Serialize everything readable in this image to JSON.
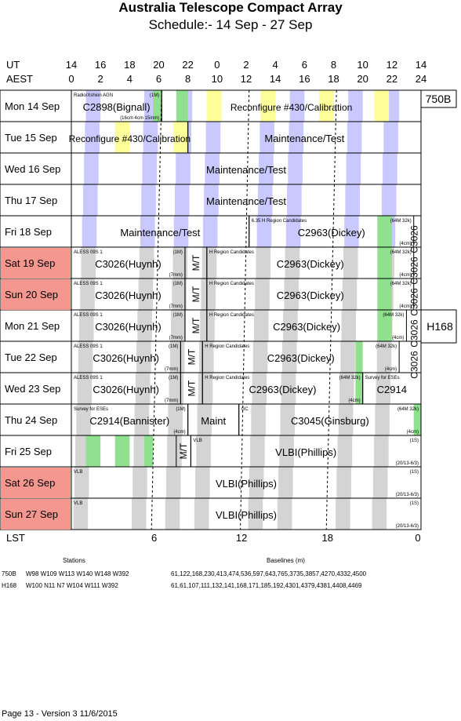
{
  "header": {
    "title": "Australia Telescope Compact Array",
    "subtitle": "Schedule:- 14 Sep - 27 Sep"
  },
  "axis": {
    "ut_label": "UT",
    "aest_label": "AEST",
    "ut_ticks": [
      "14",
      "16",
      "18",
      "20",
      "22",
      "0",
      "2",
      "4",
      "6",
      "8",
      "10",
      "12",
      "14"
    ],
    "aest_ticks": [
      "0",
      "2",
      "4",
      "6",
      "8",
      "10",
      "12",
      "14",
      "16",
      "18",
      "20",
      "22",
      "24"
    ],
    "lst_label": "LST",
    "lst_ticks": [
      "6",
      "12",
      "18",
      "0"
    ]
  },
  "days": [
    {
      "label": "Mon  14 Sep",
      "weekend": false
    },
    {
      "label": "Tue   15 Sep",
      "weekend": false
    },
    {
      "label": "Wed  16 Sep",
      "weekend": false
    },
    {
      "label": "Thu   17 Sep",
      "weekend": false
    },
    {
      "label": "Fri    18 Sep",
      "weekend": false
    },
    {
      "label": "Sat   19 Sep",
      "weekend": true
    },
    {
      "label": "Sun  20 Sep",
      "weekend": true
    },
    {
      "label": "Mon  21 Sep",
      "weekend": false
    },
    {
      "label": "Tue   22 Sep",
      "weekend": false
    },
    {
      "label": "Wed  23 Sep",
      "weekend": false
    },
    {
      "label": "Thu   24 Sep",
      "weekend": false
    },
    {
      "label": "Fri    25 Sep",
      "weekend": false
    },
    {
      "label": "Sat   26 Sep",
      "weekend": true
    },
    {
      "label": "Sun  27 Sep",
      "weekend": true
    }
  ],
  "configs": [
    {
      "label": "750B"
    },
    {
      "label": "H168"
    }
  ],
  "chart_data": {
    "type": "table",
    "x_axis": "AEST hours",
    "xlim": [
      0,
      24
    ],
    "blocks": [
      {
        "day": 0,
        "start": 0,
        "end": 6.2,
        "text": "C2898(Bignall)",
        "sub_left": "Radio/Xshion AGN",
        "sub_right": "(1M)",
        "note": "(16cm 4cm 15mm)"
      },
      {
        "day": 0,
        "start": 6.2,
        "end": 24,
        "text": "Reconfigure #430/Calibration"
      },
      {
        "day": 1,
        "start": 0,
        "end": 8,
        "text": "Reconfigure #430/Calibration"
      },
      {
        "day": 1,
        "start": 8,
        "end": 24,
        "text": "Maintenance/Test"
      },
      {
        "day": 2,
        "start": 0,
        "end": 24,
        "text": "Maintenance/Test"
      },
      {
        "day": 3,
        "start": 0,
        "end": 24,
        "text": "Maintenance/Test"
      },
      {
        "day": 4,
        "start": 0,
        "end": 12.2,
        "text": "Maintenance/Test"
      },
      {
        "day": 4,
        "start": 12.2,
        "end": 23.5,
        "text": "C2963(Dickey)",
        "sub_left": "6.35 H   Region Candidates",
        "sub_right": "(64M 32k)",
        "note": "(4cm)"
      },
      {
        "day": 5,
        "start": 0,
        "end": 7.8,
        "text": "C3026(Huynh)",
        "sub_left": "ALESS 09S 1",
        "sub_right": "(1M)",
        "note": "(7mm)"
      },
      {
        "day": 5,
        "start": 7.8,
        "end": 9.3,
        "text": "M/T",
        "vertical": true
      },
      {
        "day": 5,
        "start": 9.3,
        "end": 23.5,
        "text": "C2963(Dickey)",
        "sub_left": "H   Region Candidates",
        "sub_right": "(64M 32k)",
        "note": "(4cm)"
      },
      {
        "day": 6,
        "start": 0,
        "end": 7.8,
        "text": "C3026(Huynh)",
        "sub_left": "ALESS 09S 1",
        "sub_right": "(1M)",
        "note": "(7mm)"
      },
      {
        "day": 6,
        "start": 7.8,
        "end": 9.3,
        "text": "M/T",
        "vertical": true
      },
      {
        "day": 6,
        "start": 9.3,
        "end": 23.5,
        "text": "C2963(Dickey)",
        "sub_left": "H   Region Candidates",
        "sub_right": "(64M 32k)",
        "note": "(4cm)"
      },
      {
        "day": 7,
        "start": 0,
        "end": 7.8,
        "text": "C3026(Huynh)",
        "sub_left": "ALESS 09S 1",
        "sub_right": "(1M)",
        "note": "(7mm)"
      },
      {
        "day": 7,
        "start": 7.8,
        "end": 9.3,
        "text": "M/T",
        "vertical": true
      },
      {
        "day": 7,
        "start": 9.3,
        "end": 23.0,
        "text": "C2963(Dickey)",
        "sub_left": "H   Region Candidates",
        "sub_right": "(64M 32k)",
        "note": "(4cm)"
      },
      {
        "day": 8,
        "start": 0,
        "end": 7.5,
        "text": "C3026(Huynh)",
        "sub_left": "ALESS 09S 1",
        "sub_right": "(1M)",
        "note": "(7mm)"
      },
      {
        "day": 8,
        "start": 7.5,
        "end": 9.0,
        "text": "M/T",
        "vertical": true
      },
      {
        "day": 8,
        "start": 9.0,
        "end": 22.5,
        "text": "C2963(Dickey)",
        "sub_left": "H   Region Candidates",
        "sub_right": "(64M 32k)",
        "note": "(4cm)"
      },
      {
        "day": 9,
        "start": 0,
        "end": 7.5,
        "text": "C3026(Huynh)",
        "sub_left": "ALESS 09S 1",
        "sub_right": "(1M)",
        "note": "(7mm)"
      },
      {
        "day": 9,
        "start": 7.5,
        "end": 9.0,
        "text": "M/T",
        "vertical": true
      },
      {
        "day": 9,
        "start": 9.0,
        "end": 20.0,
        "text": "C2963(Dickey)",
        "sub_left": "H   Region Candidates",
        "sub_right": "(64M 32k)",
        "note": "(4cm)"
      },
      {
        "day": 9,
        "start": 20.0,
        "end": 24,
        "text": "C2914",
        "sub_left": "Survey for ESEs"
      },
      {
        "day": 10,
        "start": 0,
        "end": 8.0,
        "text": "C2914(Bannister)",
        "sub_left": "Survey for ESEs",
        "sub_right": "(1M)",
        "note": "(4cm)"
      },
      {
        "day": 10,
        "start": 8.0,
        "end": 11.5,
        "text": "Maint"
      },
      {
        "day": 10,
        "start": 11.5,
        "end": 24,
        "text": "C3045(Ginsburg)",
        "sub_left": "GC",
        "sub_right": "(64M 32k)",
        "note": "(4cm)"
      },
      {
        "day": 11,
        "start": 7.2,
        "end": 8.2,
        "text": "M/T",
        "vertical": true
      },
      {
        "day": 11,
        "start": 8.2,
        "end": 24,
        "text": "VLBI(Phillips)",
        "sub_left": "VLB",
        "sub_right": "(1S)",
        "note": "(20/13-6/3)"
      },
      {
        "day": 12,
        "start": 0,
        "end": 24,
        "text": "VLBI(Phillips)",
        "sub_left": "VLB",
        "sub_right": "(1S)",
        "note": "(20/13-6/3)"
      },
      {
        "day": 13,
        "start": 0,
        "end": 24,
        "text": "VLBI(Phillips)",
        "sub_left": "VLB",
        "sub_right": "(1S)",
        "note": "(20/13-6/3)"
      }
    ],
    "overflow_labels": [
      {
        "rows": [
          4,
          5
        ],
        "text": "C3026"
      },
      {
        "rows": [
          5,
          6
        ],
        "text": "C3026"
      },
      {
        "rows": [
          6,
          7
        ],
        "text": "C3026"
      },
      {
        "rows": [
          7,
          8
        ],
        "text": "C3026"
      },
      {
        "rows": [
          8,
          9
        ],
        "text": "C3026"
      }
    ]
  },
  "footer": {
    "stations_header": "Stations",
    "baselines_header": "Baselines (m)",
    "rows": [
      {
        "config": "750B",
        "stations": "W98 W109 W113 W140 W148 W392",
        "baselines": "61,122,168,230,413,474,536,597,643,765,3735,3857,4270,4332,4500"
      },
      {
        "config": "H168",
        "stations": "W100 N11 N7 W104 W111 W392",
        "baselines": "61,61,107,111,132,141,168,171,185,192,4301,4379,4381,4408,4469"
      }
    ],
    "page": "Page 13 - Version 3  11/6/2015"
  },
  "colors": {
    "weekend": "#f4978e",
    "day_band": "#c9c9ff",
    "night_band": "#d4d4d4",
    "sun_yellow": "#ffff99",
    "green": "#90e090",
    "blue": "#aaaaff"
  }
}
